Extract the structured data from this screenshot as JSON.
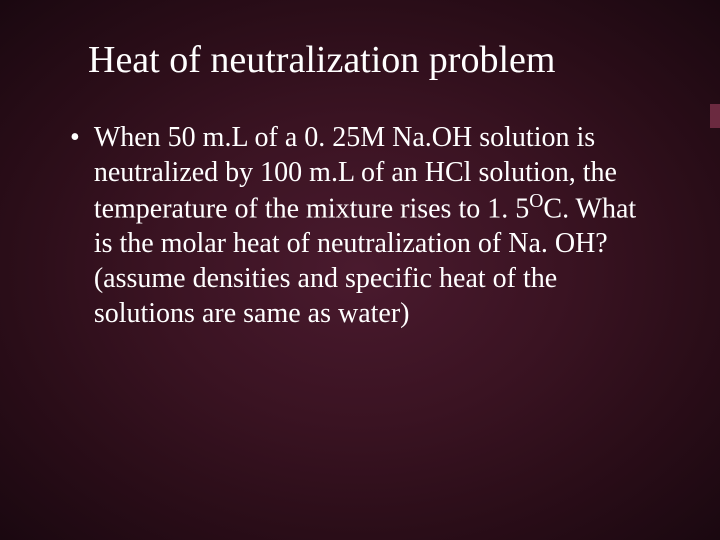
{
  "slide": {
    "title": "Heat of neutralization problem",
    "bullet_char": "•",
    "body_line1": "When 50 m.L of a 0. 25M Na.OH solution is neutralized by 100 m.L of an HCl solution, the temperature of the mixture rises to 1. 5",
    "body_super": "O",
    "body_line2": "C. What is the molar heat of neutralization of Na. OH? (assume densities and specific heat of the solutions are same as water)"
  },
  "colors": {
    "background_center": "#4a1a2e",
    "background_edge": "#1a0810",
    "text": "#ffffff",
    "edge_marker": "#6b2a40"
  },
  "typography": {
    "title_fontsize": 38,
    "body_fontsize": 28,
    "font_family": "Times New Roman"
  }
}
